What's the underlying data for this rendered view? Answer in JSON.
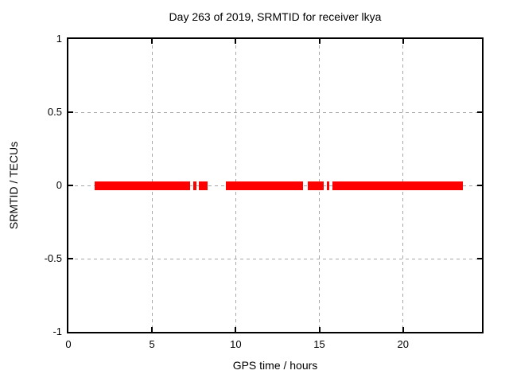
{
  "title": "Day 263 of 2019, SRMTID for receiver lkya",
  "colors": {
    "background": "#ffffff",
    "axis": "#000000",
    "grid": "#a8a8a8",
    "series": "#ff0000"
  },
  "chart_data": {
    "type": "scatter",
    "title": "Day 263 of 2019, SRMTID for receiver lkya",
    "xlabel": "GPS time / hours",
    "ylabel": "SRMTID / TECUs",
    "xlim": [
      0,
      24.72
    ],
    "ylim": [
      -1,
      1
    ],
    "xticks": [
      0,
      5,
      10,
      15,
      20
    ],
    "yticks": [
      1,
      0.5,
      0,
      -0.5,
      -1
    ],
    "grid": true,
    "legend": "none",
    "series": [
      {
        "name": "SRMTID",
        "color": "#ff0000",
        "marker": "filled-square",
        "value": 0,
        "segments_hours": [
          [
            1.56,
            7.26
          ],
          [
            7.45,
            7.64
          ],
          [
            7.78,
            8.3
          ],
          [
            9.39,
            14.01
          ],
          [
            14.29,
            15.24
          ],
          [
            15.43,
            15.61
          ],
          [
            15.8,
            23.59
          ]
        ]
      }
    ]
  }
}
